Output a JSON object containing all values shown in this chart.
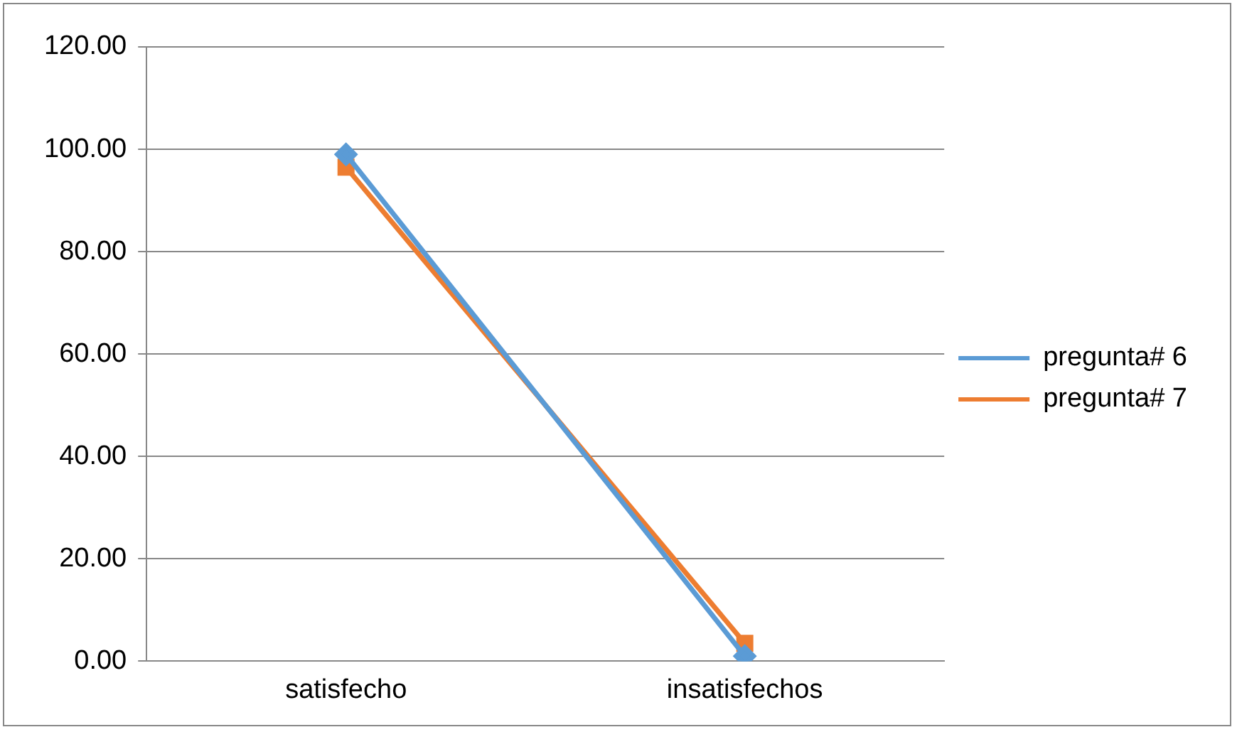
{
  "chart_data": {
    "type": "line",
    "categories": [
      "satisfecho",
      "insatisfechos"
    ],
    "series": [
      {
        "name": "pregunta# 6",
        "color": "#5b9bd5",
        "values": [
          99,
          1
        ],
        "marker": "diamond"
      },
      {
        "name": "pregunta# 7",
        "color": "#ed7d31",
        "values": [
          96.5,
          3.5
        ],
        "marker": "square"
      }
    ],
    "ylim": [
      0,
      120
    ],
    "yticks": [
      {
        "value": 0,
        "label": "0.00"
      },
      {
        "value": 20,
        "label": "20.00"
      },
      {
        "value": 40,
        "label": "40.00"
      },
      {
        "value": 60,
        "label": "60.00"
      },
      {
        "value": 80,
        "label": "80.00"
      },
      {
        "value": 100,
        "label": "100.00"
      },
      {
        "value": 120,
        "label": "120.00"
      }
    ],
    "grid": "y",
    "legend": "right",
    "line_style": "solid"
  }
}
